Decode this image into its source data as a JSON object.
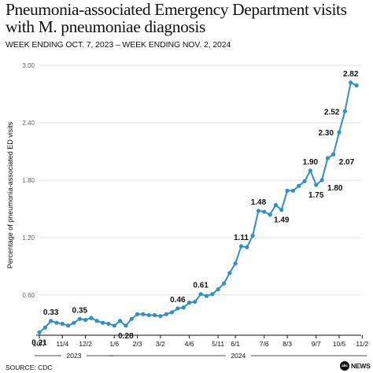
{
  "header": {
    "title": "Pneumonia-associated Emergency Department visits with M. pneumoniae diagnosis",
    "subtitle": "WEEK ENDING OCT. 7, 2023 – WEEK ENDING NOV. 2, 2024"
  },
  "footer": {
    "source": "SOURCE: CDC",
    "logo_text": "NEWS",
    "logo_mark": "abc"
  },
  "colors": {
    "line": "#2f8fc9",
    "marker": "#2f8fc9",
    "grid": "#e2e2e2"
  },
  "chart_data": {
    "type": "line",
    "title": "Pneumonia-associated Emergency Department visits with M. pneumoniae diagnosis",
    "subtitle": "WEEK ENDING OCT. 7, 2023 – WEEK ENDING NOV. 2, 2024",
    "xlabel": "",
    "ylabel": "Percentage of pneumonia-associated ED visits",
    "ylim": [
      0.18,
      3.0
    ],
    "yticks": [
      "3.00",
      "2.40",
      "1.80",
      "1.20",
      "0.60"
    ],
    "ytick_values": [
      3.0,
      2.4,
      1.8,
      1.2,
      0.6
    ],
    "grid": true,
    "xticks": [
      {
        "label": "10/7",
        "week": 0
      },
      {
        "label": "11/4",
        "week": 4
      },
      {
        "label": "12/2",
        "week": 8
      },
      {
        "label": "1/6",
        "week": 13
      },
      {
        "label": "2/3",
        "week": 17
      },
      {
        "label": "3/2",
        "week": 21
      },
      {
        "label": "4/6",
        "week": 26
      },
      {
        "label": "5/11",
        "week": 31
      },
      {
        "label": "6/1",
        "week": 34
      },
      {
        "label": "7/6",
        "week": 39
      },
      {
        "label": "8/3",
        "week": 43
      },
      {
        "label": "9/7",
        "week": 48
      },
      {
        "label": "10/5",
        "week": 52
      },
      {
        "label": "11/2",
        "week": 56
      }
    ],
    "year_labels": [
      {
        "label": "2023",
        "from_week": 0,
        "to_week": 12
      },
      {
        "label": "2024",
        "from_week": 13,
        "to_week": 56
      }
    ],
    "series": [
      {
        "values": [
          0.21,
          0.26,
          0.33,
          0.31,
          0.3,
          0.28,
          0.31,
          0.35,
          0.34,
          0.36,
          0.33,
          0.31,
          0.3,
          0.28,
          0.33,
          0.28,
          0.35,
          0.4,
          0.4,
          0.39,
          0.39,
          0.38,
          0.4,
          0.42,
          0.46,
          0.47,
          0.52,
          0.53,
          0.61,
          0.59,
          0.61,
          0.66,
          0.72,
          0.83,
          0.93,
          1.11,
          1.1,
          1.22,
          1.48,
          1.47,
          1.44,
          1.54,
          1.49,
          1.69,
          1.69,
          1.74,
          1.79,
          1.9,
          1.75,
          1.8,
          2.03,
          2.07,
          2.3,
          2.52,
          2.82,
          2.79
        ]
      }
    ],
    "annotations": [
      {
        "label": "0.21",
        "week": 0,
        "position": "below"
      },
      {
        "label": "0.33",
        "week": 2,
        "position": "above"
      },
      {
        "label": "0.35",
        "week": 7,
        "position": "above"
      },
      {
        "label": "0.28",
        "week": 15,
        "position": "below"
      },
      {
        "label": "0.46",
        "week": 24,
        "position": "above"
      },
      {
        "label": "0.61",
        "week": 28,
        "position": "above"
      },
      {
        "label": "1.11",
        "week": 35,
        "position": "above"
      },
      {
        "label": "1.48",
        "week": 38,
        "position": "above"
      },
      {
        "label": "1.49",
        "week": 42,
        "position": "below"
      },
      {
        "label": "1.90",
        "week": 47,
        "position": "above"
      },
      {
        "label": "1.75",
        "week": 48,
        "position": "below"
      },
      {
        "label": "1.80",
        "week": 49,
        "position": "right"
      },
      {
        "label": "2.07",
        "week": 51,
        "position": "right"
      },
      {
        "label": "2.30",
        "week": 52,
        "position": "left"
      },
      {
        "label": "2.52",
        "week": 53,
        "position": "left"
      },
      {
        "label": "2.82",
        "week": 54,
        "position": "above"
      }
    ]
  }
}
